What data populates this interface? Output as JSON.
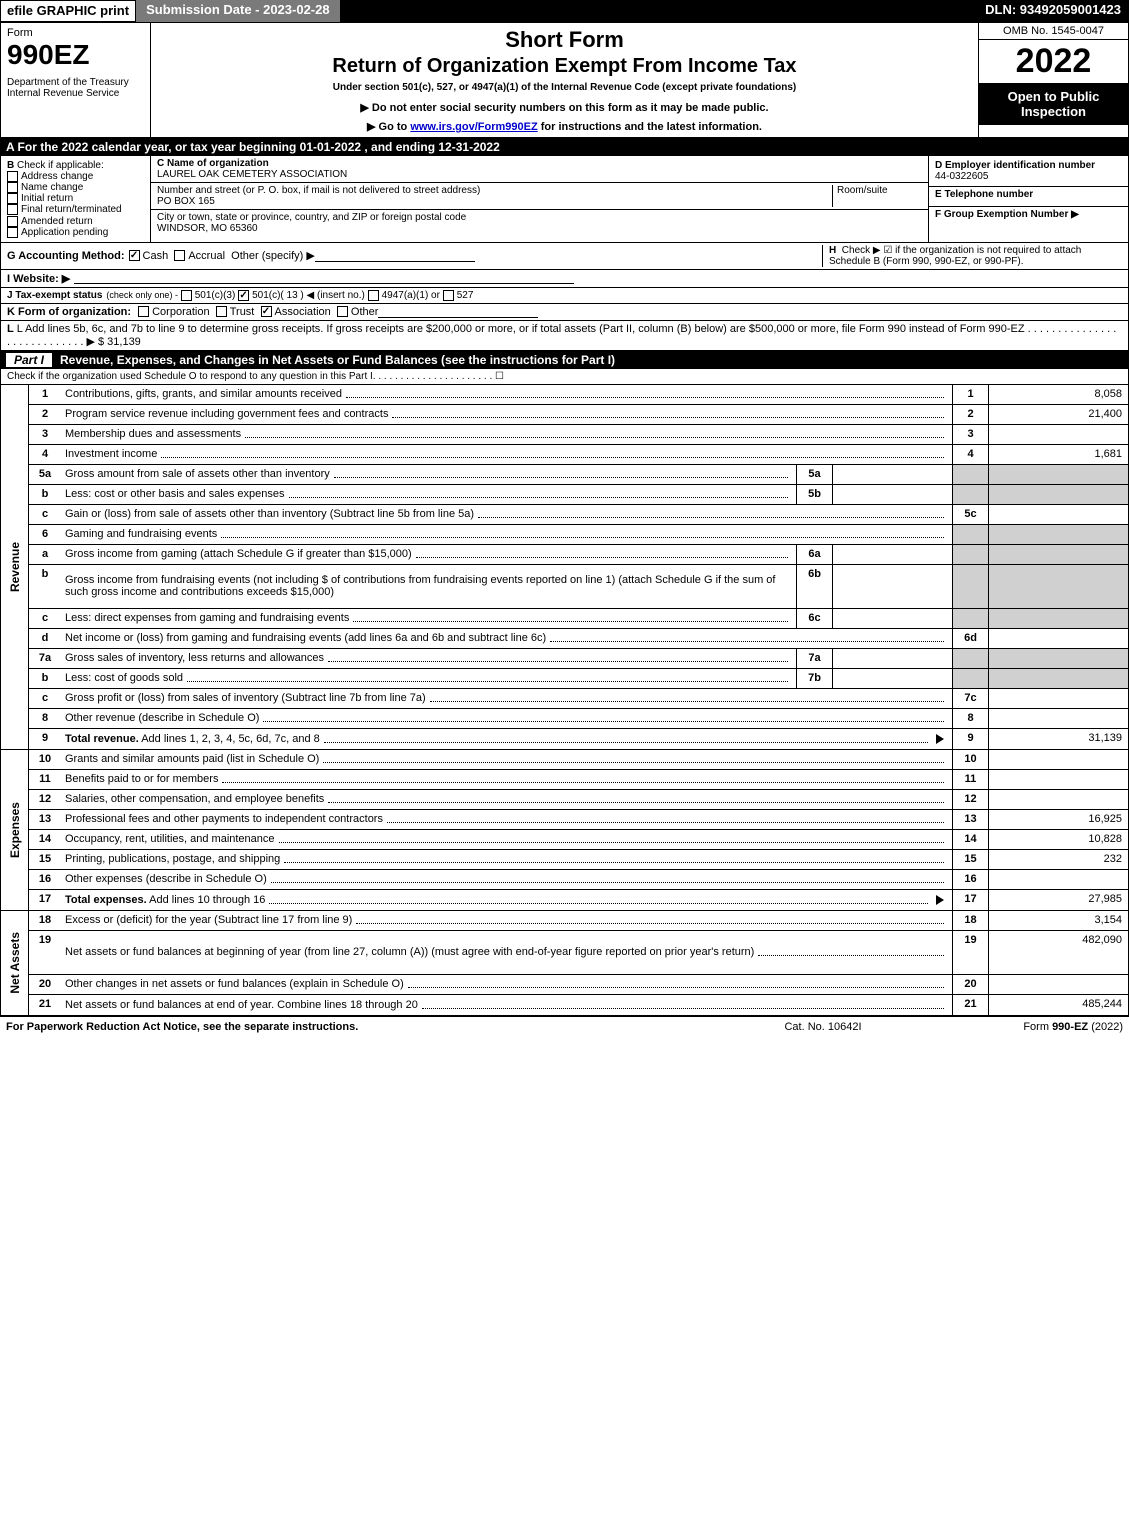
{
  "topbar": {
    "efile": "efile GRAPHIC print",
    "submission": "Submission Date - 2023-02-28",
    "dln": "DLN: 93492059001423"
  },
  "header": {
    "form": "Form",
    "num": "990EZ",
    "dept": "Department of the Treasury\nInternal Revenue Service",
    "short": "Short Form",
    "ret": "Return of Organization Exempt From Income Tax",
    "under": "Under section 501(c), 527, or 4947(a)(1) of the Internal Revenue Code (except private foundations)",
    "note": "▶ Do not enter social security numbers on this form as it may be made public.",
    "go_pre": "▶ Go to ",
    "go_link": "www.irs.gov/Form990EZ",
    "go_post": " for instructions and the latest information.",
    "omb": "OMB No. 1545-0047",
    "year": "2022",
    "open": "Open to Public Inspection"
  },
  "rowA": "A  For the 2022 calendar year, or tax year beginning 01-01-2022  , and ending 12-31-2022",
  "sectionB": {
    "label": "B",
    "check": "Check if applicable:",
    "opts": [
      "Address change",
      "Name change",
      "Initial return",
      "Final return/terminated",
      "Amended return",
      "Application pending"
    ]
  },
  "sectionC": {
    "nameLbl": "C Name of organization",
    "name": "LAUREL OAK CEMETERY ASSOCIATION",
    "streetLbl": "Number and street (or P. O. box, if mail is not delivered to street address)",
    "roomLbl": "Room/suite",
    "street": "PO BOX 165",
    "cityLbl": "City or town, state or province, country, and ZIP or foreign postal code",
    "city": "WINDSOR, MO  65360"
  },
  "sectionD": {
    "lbl": "D Employer identification number",
    "val": "44-0322605"
  },
  "sectionE": {
    "lbl": "E Telephone number"
  },
  "sectionF": {
    "lbl": "F Group Exemption Number  ▶"
  },
  "sectionG": {
    "lbl": "G Accounting Method:",
    "cash": "Cash",
    "accrual": "Accrual",
    "other": "Other (specify) ▶"
  },
  "sectionH": {
    "lbl": "H",
    "txt": "Check ▶ ☑ if the organization is not required to attach Schedule B (Form 990, 990-EZ, or 990-PF)."
  },
  "sectionI": {
    "lbl": "I Website: ▶"
  },
  "sectionJ": {
    "lbl": "J Tax-exempt status",
    "note": "(check only one) -",
    "o1": "501(c)(3)",
    "o2": "501(c)( 13 ) ◀ (insert no.)",
    "o3": "4947(a)(1) or",
    "o4": "527"
  },
  "sectionK": {
    "lbl": "K Form of organization:",
    "o1": "Corporation",
    "o2": "Trust",
    "o3": "Association",
    "o4": "Other"
  },
  "sectionL": {
    "txt": "L Add lines 5b, 6c, and 7b to line 9 to determine gross receipts. If gross receipts are $200,000 or more, or if total assets (Part II, column (B) below) are $500,000 or more, file Form 990 instead of Form 990-EZ",
    "dots": ". . . . . . . . . . . . . . . . . . . . . . . . . . . . ▶ $",
    "val": "31,139"
  },
  "part1": {
    "label": "Part I",
    "title": "Revenue, Expenses, and Changes in Net Assets or Fund Balances (see the instructions for Part I)",
    "check": "Check if the organization used Schedule O to respond to any question in this Part I",
    "checkDots": ". . . . . . . . . . . . . . . . . . . . . . ☐"
  },
  "sideLabels": {
    "rev": "Revenue",
    "exp": "Expenses",
    "na": "Net Assets"
  },
  "rows": [
    {
      "n": "1",
      "d": "Contributions, gifts, grants, and similar amounts received",
      "r": "1",
      "v": "8,058"
    },
    {
      "n": "2",
      "d": "Program service revenue including government fees and contracts",
      "r": "2",
      "v": "21,400"
    },
    {
      "n": "3",
      "d": "Membership dues and assessments",
      "r": "3",
      "v": ""
    },
    {
      "n": "4",
      "d": "Investment income",
      "r": "4",
      "v": "1,681"
    },
    {
      "n": "5a",
      "d": "Gross amount from sale of assets other than inventory",
      "m": "5a",
      "shade": true
    },
    {
      "n": "b",
      "d": "Less: cost or other basis and sales expenses",
      "m": "5b",
      "shade": true
    },
    {
      "n": "c",
      "d": "Gain or (loss) from sale of assets other than inventory (Subtract line 5b from line 5a)",
      "r": "5c",
      "v": ""
    },
    {
      "n": "6",
      "d": "Gaming and fundraising events",
      "shade": true,
      "nofill": true
    },
    {
      "n": "a",
      "d": "Gross income from gaming (attach Schedule G if greater than $15,000)",
      "m": "6a",
      "shade": true
    },
    {
      "n": "b",
      "d": "Gross income from fundraising events (not including $                        of contributions from fundraising events reported on line 1) (attach Schedule G if the sum of such gross income and contributions exceeds $15,000)",
      "m": "6b",
      "shade": true,
      "tall": true
    },
    {
      "n": "c",
      "d": "Less: direct expenses from gaming and fundraising events",
      "m": "6c",
      "shade": true
    },
    {
      "n": "d",
      "d": "Net income or (loss) from gaming and fundraising events (add lines 6a and 6b and subtract line 6c)",
      "r": "6d",
      "v": ""
    },
    {
      "n": "7a",
      "d": "Gross sales of inventory, less returns and allowances",
      "m": "7a",
      "shade": true
    },
    {
      "n": "b",
      "d": "Less: cost of goods sold",
      "m": "7b",
      "shade": true
    },
    {
      "n": "c",
      "d": "Gross profit or (loss) from sales of inventory (Subtract line 7b from line 7a)",
      "r": "7c",
      "v": ""
    },
    {
      "n": "8",
      "d": "Other revenue (describe in Schedule O)",
      "r": "8",
      "v": ""
    },
    {
      "n": "9",
      "d": "Total revenue. Add lines 1, 2, 3, 4, 5c, 6d, 7c, and 8",
      "r": "9",
      "v": "31,139",
      "bold": true,
      "arrow": true
    }
  ],
  "expRows": [
    {
      "n": "10",
      "d": "Grants and similar amounts paid (list in Schedule O)",
      "r": "10",
      "v": ""
    },
    {
      "n": "11",
      "d": "Benefits paid to or for members",
      "r": "11",
      "v": ""
    },
    {
      "n": "12",
      "d": "Salaries, other compensation, and employee benefits",
      "r": "12",
      "v": ""
    },
    {
      "n": "13",
      "d": "Professional fees and other payments to independent contractors",
      "r": "13",
      "v": "16,925"
    },
    {
      "n": "14",
      "d": "Occupancy, rent, utilities, and maintenance",
      "r": "14",
      "v": "10,828"
    },
    {
      "n": "15",
      "d": "Printing, publications, postage, and shipping",
      "r": "15",
      "v": "232"
    },
    {
      "n": "16",
      "d": "Other expenses (describe in Schedule O)",
      "r": "16",
      "v": ""
    },
    {
      "n": "17",
      "d": "Total expenses. Add lines 10 through 16",
      "r": "17",
      "v": "27,985",
      "bold": true,
      "arrow": true
    }
  ],
  "naRows": [
    {
      "n": "18",
      "d": "Excess or (deficit) for the year (Subtract line 17 from line 9)",
      "r": "18",
      "v": "3,154"
    },
    {
      "n": "19",
      "d": "Net assets or fund balances at beginning of year (from line 27, column (A)) (must agree with end-of-year figure reported on prior year's return)",
      "r": "19",
      "v": "482,090",
      "tall": true
    },
    {
      "n": "20",
      "d": "Other changes in net assets or fund balances (explain in Schedule O)",
      "r": "20",
      "v": ""
    },
    {
      "n": "21",
      "d": "Net assets or fund balances at end of year. Combine lines 18 through 20",
      "r": "21",
      "v": "485,244"
    }
  ],
  "footer": {
    "f1": "For Paperwork Reduction Act Notice, see the separate instructions.",
    "f2": "Cat. No. 10642I",
    "f3": "Form 990-EZ (2022)"
  },
  "colors": {
    "black": "#000000",
    "white": "#ffffff",
    "gray_bar": "#7a7a7a",
    "shade": "#d0d0d0",
    "link": "#0000cc"
  }
}
